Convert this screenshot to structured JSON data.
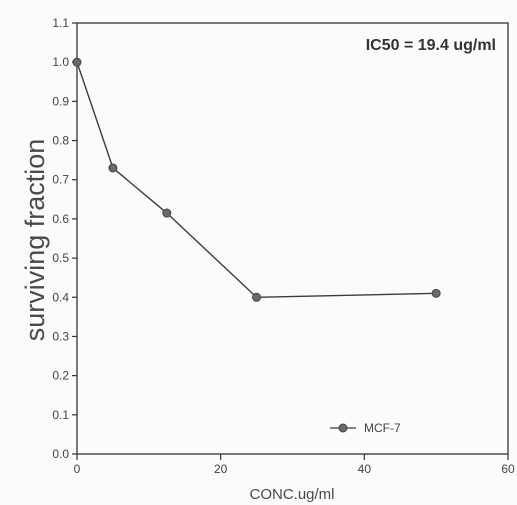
{
  "chart_data": {
    "type": "line",
    "xlabel": "CONC.ug/ml",
    "ylabel": "surviving fraction",
    "xlim": [
      0,
      60
    ],
    "ylim": [
      0,
      1.1
    ],
    "x_ticks": [
      "0",
      "20",
      "40",
      "60"
    ],
    "y_ticks": [
      "0.0",
      "0.1",
      "0.2",
      "0.3",
      "0.4",
      "0.5",
      "0.6",
      "0.7",
      "0.8",
      "0.9",
      "1.0",
      "1.1"
    ],
    "grid": false,
    "legend_position": "bottom-right",
    "annotation": "IC50 = 19.4 ug/ml",
    "series": [
      {
        "name": "MCF-7",
        "x": [
          0,
          5,
          12.5,
          25,
          50
        ],
        "y": [
          1.0,
          0.73,
          0.615,
          0.4,
          0.41
        ]
      }
    ],
    "colors": {
      "line": "#3c3c3c",
      "marker": "#6a6a6a",
      "axis": "#333333"
    }
  }
}
